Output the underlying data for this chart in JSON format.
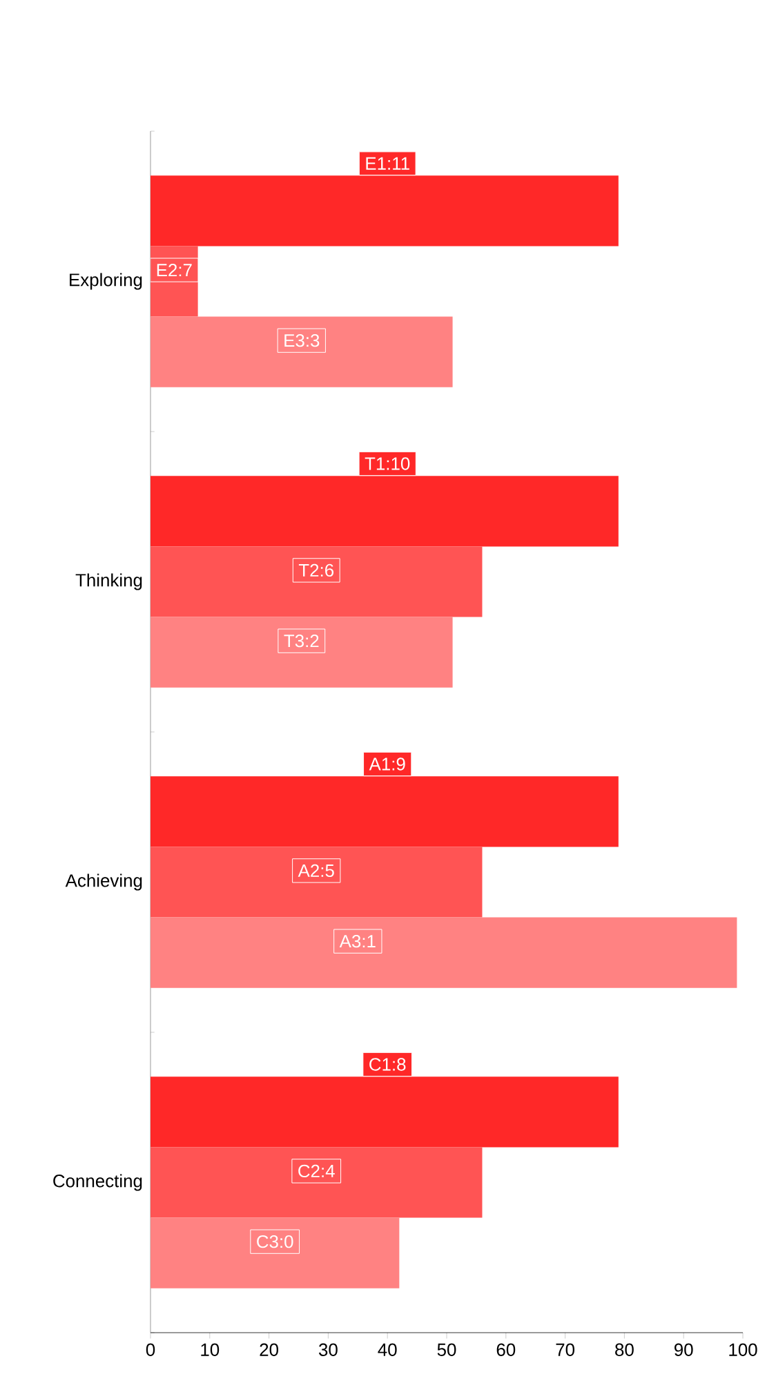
{
  "chart_data": {
    "type": "bar",
    "orientation": "horizontal",
    "categories": [
      "Exploring",
      "Thinking",
      "Achieving",
      "Connecting"
    ],
    "series": [
      {
        "color": "#ff2828",
        "values": [
          79,
          79,
          79,
          79
        ],
        "value_labels": [
          "E1:11",
          "T1:10",
          "A1:9",
          "C1:8"
        ]
      },
      {
        "color": "#ff5454",
        "values": [
          8,
          56,
          56,
          56
        ],
        "value_labels": [
          "E2:7",
          "T2:6",
          "A2:5",
          "C2:4"
        ]
      },
      {
        "color": "#ff8282",
        "values": [
          51,
          51,
          99,
          42
        ],
        "value_labels": [
          "E3:3",
          "T3:2",
          "A3:1",
          "C3:0"
        ]
      }
    ],
    "xlim": [
      0,
      100
    ],
    "xticks": [
      0,
      10,
      20,
      30,
      40,
      50,
      60,
      70,
      80,
      90,
      100
    ]
  }
}
